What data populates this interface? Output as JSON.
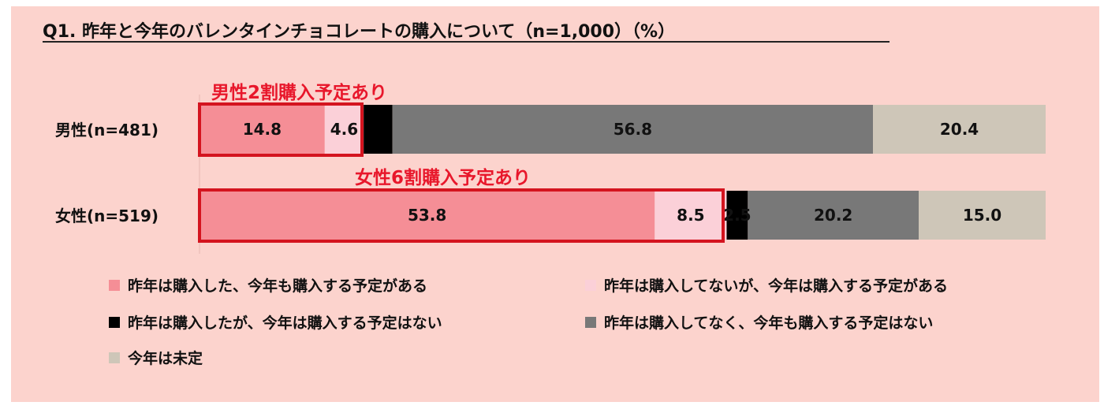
{
  "title": "Q1. 昨年と今年のバレンタインチョコレートの購入について（n=1,000）（%）",
  "annotations": {
    "male": "男性2割購入予定あり",
    "female": "女性6割購入予定あり"
  },
  "chart_data": {
    "type": "bar",
    "orientation": "horizontal",
    "stacked": true,
    "categories": [
      "男性(n=481)",
      "女性(n=519)"
    ],
    "series": [
      {
        "name": "昨年は購入した、今年も購入する予定がある",
        "color": "#f58e96",
        "values": [
          14.8,
          53.8
        ],
        "labels": [
          "14.8",
          "53.8"
        ]
      },
      {
        "name": "昨年は購入してないが、今年は購入する予定がある",
        "color": "#fbd0d8",
        "values": [
          4.6,
          8.5
        ],
        "labels": [
          "4.6",
          "8.5"
        ]
      },
      {
        "name": "昨年は購入したが、今年は購入する予定はない",
        "color": "#000000",
        "values": [
          3.4,
          2.5
        ],
        "labels": [
          "",
          "2.5"
        ]
      },
      {
        "name": "昨年は購入してなく、今年も購入する予定はない",
        "color": "#787878",
        "values": [
          56.8,
          20.2
        ],
        "labels": [
          "56.8",
          "20.2"
        ]
      },
      {
        "name": "今年は未定",
        "color": "#cec6b8",
        "values": [
          20.4,
          15.0
        ],
        "labels": [
          "20.4",
          "15.0"
        ]
      }
    ],
    "xlim": [
      0,
      100
    ],
    "grid": false,
    "legend_position": "bottom"
  }
}
